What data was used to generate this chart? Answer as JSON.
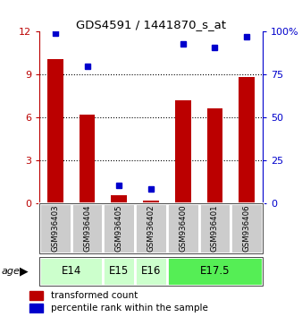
{
  "title": "GDS4591 / 1441870_s_at",
  "samples": [
    "GSM936403",
    "GSM936404",
    "GSM936405",
    "GSM936402",
    "GSM936400",
    "GSM936401",
    "GSM936406"
  ],
  "red_values": [
    10.1,
    6.2,
    0.55,
    0.15,
    7.2,
    6.6,
    8.8
  ],
  "blue_values": [
    99,
    80,
    10,
    8,
    93,
    91,
    97
  ],
  "age_groups": [
    {
      "label": "E14",
      "span": [
        0,
        2
      ],
      "color": "#ccffcc"
    },
    {
      "label": "E15",
      "span": [
        2,
        3
      ],
      "color": "#ccffcc"
    },
    {
      "label": "E16",
      "span": [
        3,
        4
      ],
      "color": "#ccffcc"
    },
    {
      "label": "E17.5",
      "span": [
        4,
        7
      ],
      "color": "#55ee55"
    }
  ],
  "ylim_left": [
    0,
    12
  ],
  "ylim_right": [
    0,
    100
  ],
  "yticks_left": [
    0,
    3,
    6,
    9,
    12
  ],
  "yticks_right": [
    0,
    25,
    50,
    75,
    100
  ],
  "ytick_labels_right": [
    "0",
    "25",
    "50",
    "75",
    "100%"
  ],
  "grid_lines": [
    3,
    6,
    9
  ],
  "red_color": "#bb0000",
  "blue_color": "#0000cc",
  "bar_width": 0.5,
  "blue_marker_size": 5,
  "sample_bg_color": "#cccccc",
  "sample_border_color": "#ffffff",
  "legend_red": "transformed count",
  "legend_blue": "percentile rank within the sample",
  "figsize": [
    3.38,
    3.54
  ],
  "dpi": 100
}
